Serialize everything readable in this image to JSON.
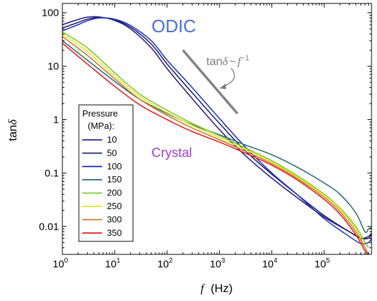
{
  "chart_data": {
    "type": "line",
    "x_scale": "log",
    "y_scale": "log",
    "xlim": [
      1,
      800000
    ],
    "ylim": [
      0.003,
      150
    ],
    "x_ticks": [
      1,
      10,
      100,
      1000,
      10000,
      100000
    ],
    "x_tick_labels": [
      "10",
      "10",
      "10",
      "10",
      "10",
      "10"
    ],
    "x_tick_exponents": [
      "0",
      "1",
      "2",
      "3",
      "4",
      "5"
    ],
    "y_ticks": [
      100,
      10,
      1,
      0.1,
      0.01
    ],
    "y_tick_labels": [
      "100",
      "10",
      "1",
      "0.1",
      "0.01"
    ],
    "xlabel_symbol": "f",
    "xlabel_unit": "(Hz)",
    "ylabel_prefix": "tan",
    "ylabel_symbol": "δ",
    "legend": {
      "title_line1": "Pressure",
      "title_line2": "(MPa):",
      "placement": "center-left"
    },
    "annotations": {
      "odic": {
        "text": "ODIC",
        "color": "#4a6fd8"
      },
      "crystal": {
        "text": "Crystal",
        "color": "#9b3fd6"
      },
      "slope": {
        "prefix": "tan",
        "symbol": "δ",
        "tilde": "~",
        "f": "f",
        "exponent": "−1",
        "color": "#808080",
        "line": {
          "x": [
            200,
            2200
          ],
          "y": [
            20,
            1.3
          ]
        }
      }
    },
    "series": [
      {
        "name": "10",
        "color": "#2a1a8a",
        "x": [
          1,
          2,
          3,
          5,
          10,
          20,
          50,
          100,
          300,
          1000,
          3000,
          10000,
          30000,
          100000,
          300000,
          500000,
          700000,
          800000
        ],
        "y": [
          60,
          75,
          83,
          84,
          72,
          50,
          22,
          9,
          2.5,
          0.65,
          0.22,
          0.08,
          0.035,
          0.015,
          0.008,
          0.006,
          0.006,
          0.007
        ]
      },
      {
        "name": "50",
        "color": "#1a2266",
        "x": [
          1,
          2,
          3,
          5,
          10,
          20,
          50,
          100,
          300,
          1000,
          3000,
          10000,
          30000,
          100000,
          300000,
          500000,
          700000,
          800000
        ],
        "y": [
          52,
          66,
          76,
          82,
          74,
          54,
          26,
          11,
          3.2,
          0.85,
          0.27,
          0.095,
          0.04,
          0.016,
          0.008,
          0.006,
          0.0065,
          0.0075
        ]
      },
      {
        "name": "100",
        "color": "#2232b8",
        "x": [
          1,
          2,
          3,
          5,
          10,
          20,
          50,
          100,
          300,
          1000,
          3000,
          10000,
          30000,
          100000,
          300000,
          500000,
          700000,
          800000
        ],
        "y": [
          46,
          60,
          71,
          80,
          76,
          58,
          30,
          13,
          4,
          1.05,
          0.32,
          0.1,
          0.04,
          0.014,
          0.0065,
          0.0048,
          0.005,
          0.006
        ]
      },
      {
        "name": "150",
        "color": "#2c6b7a",
        "x": [
          1,
          3,
          10,
          30,
          100,
          300,
          1000,
          3000,
          10000,
          30000,
          100000,
          200000,
          400000,
          600000,
          700000,
          800000
        ],
        "y": [
          30,
          13,
          5.2,
          2.4,
          1.3,
          0.8,
          0.52,
          0.34,
          0.22,
          0.13,
          0.065,
          0.04,
          0.018,
          0.008,
          0.009,
          0.0095
        ]
      },
      {
        "name": "200",
        "color": "#7ac82a",
        "x": [
          1,
          3,
          10,
          30,
          100,
          300,
          1000,
          3000,
          10000,
          30000,
          100000,
          200000,
          400000,
          600000,
          700000
        ],
        "y": [
          44,
          22,
          7.5,
          3,
          1.5,
          0.85,
          0.5,
          0.3,
          0.17,
          0.09,
          0.04,
          0.022,
          0.01,
          0.005,
          0.004
        ]
      },
      {
        "name": "250",
        "color": "#e8e020",
        "x": [
          1,
          3,
          10,
          30,
          100,
          300,
          1000,
          3000,
          10000,
          30000,
          100000,
          200000,
          400000,
          600000,
          700000
        ],
        "y": [
          40,
          19,
          6.5,
          2.7,
          1.35,
          0.78,
          0.46,
          0.28,
          0.16,
          0.085,
          0.038,
          0.021,
          0.009,
          0.004,
          0.003
        ]
      },
      {
        "name": "300",
        "color": "#c77a2a",
        "x": [
          1,
          3,
          10,
          30,
          100,
          300,
          1000,
          3000,
          10000,
          30000,
          100000,
          200000,
          400000,
          600000,
          700000
        ],
        "y": [
          36,
          16,
          5.8,
          2.4,
          1.2,
          0.7,
          0.42,
          0.26,
          0.15,
          0.08,
          0.035,
          0.019,
          0.008,
          0.004,
          0.003
        ]
      },
      {
        "name": "350",
        "color": "#e02020",
        "x": [
          1,
          3,
          10,
          30,
          100,
          300,
          1000,
          3000,
          10000,
          30000,
          100000,
          200000,
          400000,
          600000,
          700000
        ],
        "y": [
          27,
          11,
          4.2,
          1.9,
          1,
          0.6,
          0.38,
          0.24,
          0.14,
          0.075,
          0.032,
          0.017,
          0.007,
          0.0035,
          0.003
        ]
      }
    ]
  }
}
